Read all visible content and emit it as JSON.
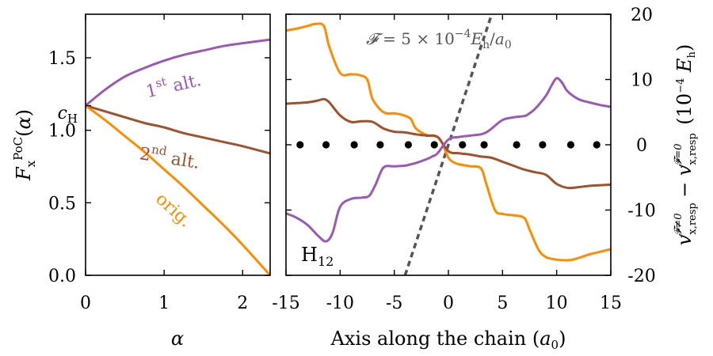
{
  "colors": {
    "purple": "#9b59b6",
    "brown": "#a0522d",
    "orange": "#ff8c00",
    "gray": "#555555",
    "black": "#000000"
  },
  "chart_data": [
    {
      "type": "line",
      "xlabel": "α",
      "ylabel": "F_x^PoC(α)",
      "xlim": [
        0,
        2.35
      ],
      "ylim": [
        0.0,
        1.8
      ],
      "xticks": [
        0,
        1,
        2
      ],
      "yticks": [
        0.0,
        0.5,
        1.0,
        1.5
      ],
      "ytick_labels": [
        "0.0",
        "0.5",
        "1.0",
        "1.5"
      ],
      "extra_ytick": {
        "value": 1.17,
        "label": "c_H"
      },
      "series": [
        {
          "name": "1st alt.",
          "color": "purple",
          "x": [
            0,
            0.25,
            0.5,
            0.75,
            1.0,
            1.25,
            1.5,
            1.75,
            2.0,
            2.35
          ],
          "y": [
            1.17,
            1.28,
            1.37,
            1.43,
            1.48,
            1.52,
            1.55,
            1.58,
            1.6,
            1.625
          ]
        },
        {
          "name": "2nd alt.",
          "color": "brown",
          "x": [
            0,
            0.25,
            0.5,
            0.75,
            1.0,
            1.25,
            1.5,
            1.75,
            2.0,
            2.35
          ],
          "y": [
            1.17,
            1.13,
            1.09,
            1.05,
            1.02,
            0.98,
            0.95,
            0.92,
            0.89,
            0.84
          ]
        },
        {
          "name": "orig.",
          "color": "orange",
          "x": [
            0,
            0.25,
            0.5,
            0.75,
            1.0,
            1.25,
            1.5,
            1.75,
            2.0,
            2.35
          ],
          "y": [
            1.17,
            1.07,
            0.96,
            0.85,
            0.73,
            0.61,
            0.48,
            0.35,
            0.21,
            0.0
          ]
        }
      ],
      "labels": {
        "first_alt": {
          "main": "1",
          "sup": "st",
          "rest": " alt."
        },
        "second_alt": {
          "main": "2",
          "sup": "nd",
          "rest": " alt."
        },
        "orig": "orig."
      }
    },
    {
      "type": "line",
      "xlabel": "Axis along the chain (a₀)",
      "ylabel_right": "v_x,resp^(F≠0) − v_x,resp^(F=0) (10⁻⁴ E_h)",
      "xlim": [
        -15,
        15
      ],
      "ylim": [
        -20,
        20
      ],
      "xticks": [
        -15,
        -10,
        -5,
        0,
        5,
        10,
        15
      ],
      "xtick_labels": [
        "-15",
        "-10",
        "-5",
        "0",
        "5",
        "10",
        "15"
      ],
      "yticks": [
        -20,
        -10,
        0,
        10,
        20
      ],
      "ytick_labels": [
        "-20",
        "-10",
        "0",
        "10",
        "20"
      ],
      "annotation_field": "𝓕 = 5 × 10⁻⁴ E_h/a₀",
      "system_label": "H₁₂",
      "atoms_x": [
        -13.7,
        -11.3,
        -8.7,
        -6.3,
        -3.7,
        -1.3,
        1.3,
        3.3,
        6.3,
        8.7,
        11.3,
        13.7
      ],
      "field_line": {
        "x": [
          -4,
          4
        ],
        "y": [
          -20,
          20
        ]
      },
      "series": [
        {
          "name": "orange",
          "color": "orange",
          "x": [
            -15,
            -14,
            -13,
            -12.3,
            -11.5,
            -11,
            -10,
            -9,
            -8.3,
            -7.5,
            -7,
            -6,
            -5,
            -4.3,
            -3.5,
            -3,
            -2,
            -1,
            -0.5,
            0,
            0.5,
            1,
            2,
            3,
            3.5,
            4.3,
            5,
            6,
            7,
            7.5,
            8.3,
            9,
            10,
            11,
            11.5,
            12.3,
            13,
            14,
            15
          ],
          "y": [
            17.5,
            17.8,
            18.2,
            18.5,
            18.2,
            15,
            11,
            10.8,
            10.7,
            10,
            7,
            5,
            4.8,
            4.6,
            4,
            2.5,
            1.5,
            1.2,
            0,
            -2,
            -2.7,
            -3,
            -3.3,
            -3.6,
            -6,
            -10,
            -10.6,
            -10.8,
            -11.2,
            -13,
            -16,
            -17.2,
            -17.6,
            -17.7,
            -17.6,
            -17.2,
            -16.8,
            -16.4,
            -16
          ]
        },
        {
          "name": "brown",
          "color": "brown",
          "x": [
            -15,
            -13,
            -12,
            -11.5,
            -11,
            -10,
            -9,
            -8,
            -7,
            -6,
            -5,
            -4,
            -3,
            -2,
            -1,
            0,
            1,
            2,
            3,
            4,
            5,
            6,
            7,
            8,
            9,
            10,
            11,
            12,
            13,
            14,
            15
          ],
          "y": [
            6.3,
            6.5,
            6.8,
            7,
            6.5,
            4.5,
            3.5,
            3.6,
            3.5,
            2.5,
            2,
            1.9,
            1.6,
            1.4,
            1.2,
            -1,
            -1.3,
            -1.5,
            -1.8,
            -2,
            -2.6,
            -3.2,
            -3.8,
            -4.2,
            -4.6,
            -6,
            -6.6,
            -6.5,
            -6.3,
            -6.2,
            -6.1
          ]
        },
        {
          "name": "purple",
          "color": "purple",
          "x": [
            -15,
            -14,
            -13,
            -12,
            -11.3,
            -10.7,
            -10,
            -9,
            -8,
            -7.3,
            -6.7,
            -6,
            -5,
            -4,
            -3.5,
            -3,
            -2,
            -1.5,
            -1,
            0,
            1,
            2,
            3,
            3.5,
            4,
            5,
            6,
            7,
            7.3,
            8,
            9,
            9.5,
            10,
            10.5,
            11,
            12,
            13,
            14,
            15
          ],
          "y": [
            -10.5,
            -11.2,
            -12.3,
            -14,
            -14.8,
            -13.5,
            -9.5,
            -8.3,
            -8.1,
            -7.8,
            -6,
            -3.5,
            -3.3,
            -3.2,
            -3,
            -2.8,
            -2.2,
            -1.8,
            -1.3,
            0.8,
            1.2,
            1.4,
            1.6,
            1.9,
            2.5,
            3.8,
            4.2,
            4.4,
            4.6,
            5.5,
            7.5,
            9,
            10.2,
            9.5,
            8.2,
            7,
            6.5,
            6.1,
            5.8
          ]
        }
      ]
    }
  ]
}
